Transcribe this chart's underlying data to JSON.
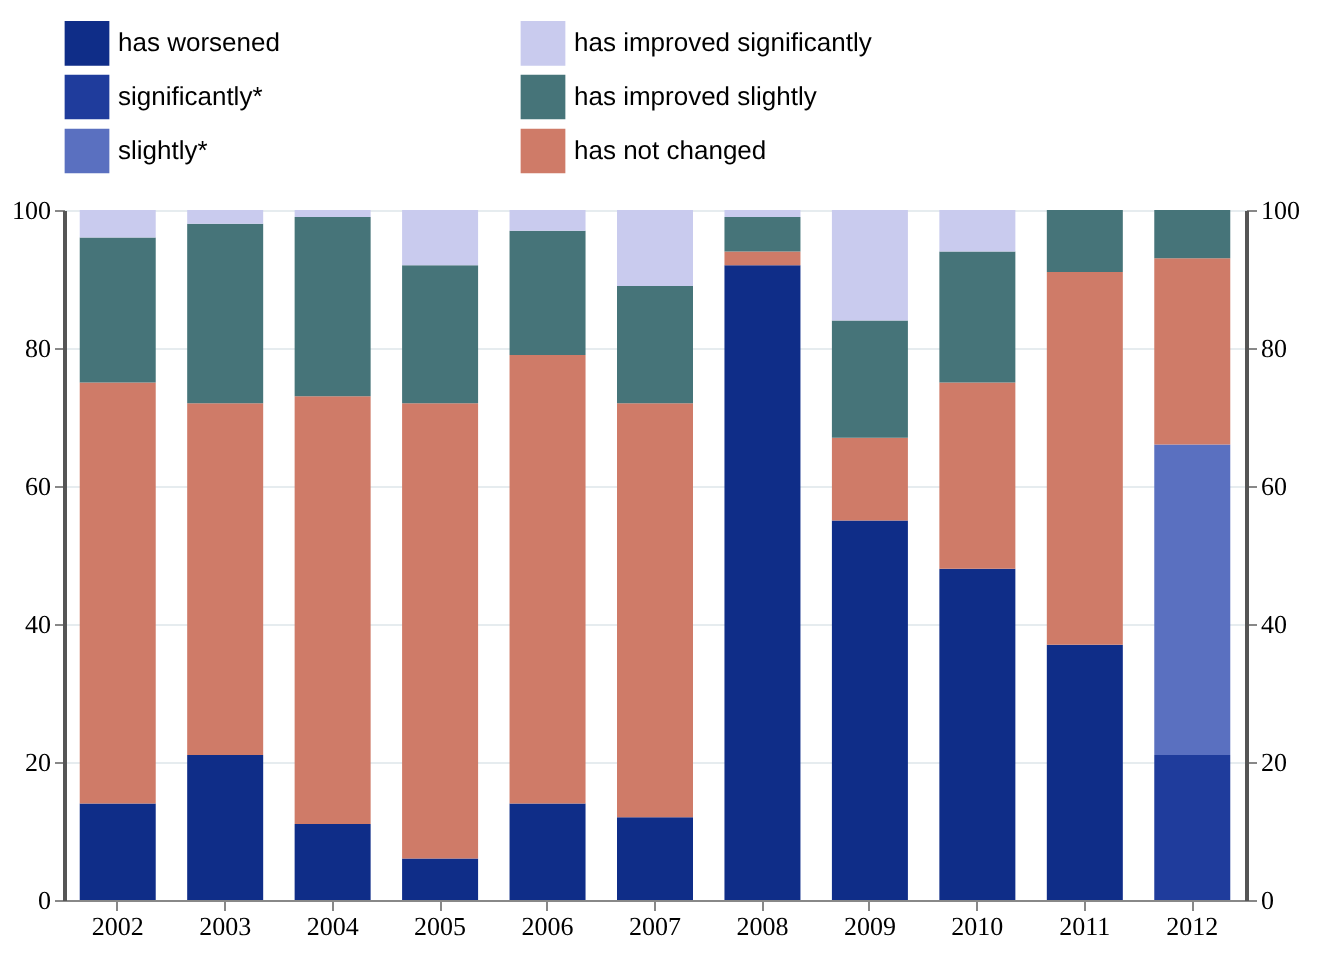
{
  "chart_data": {
    "type": "bar",
    "stacked": true,
    "categories": [
      "2002",
      "2003",
      "2004",
      "2005",
      "2006",
      "2007",
      "2008",
      "2009",
      "2010",
      "2011",
      "2012"
    ],
    "series": [
      {
        "name": "has worsened",
        "color": "#0f2d88",
        "values": [
          14,
          21,
          11,
          6,
          14,
          12,
          92,
          55,
          48,
          37,
          null
        ]
      },
      {
        "name": "significantly*",
        "color": "#1f3c9c",
        "values": [
          null,
          null,
          null,
          null,
          null,
          null,
          null,
          null,
          null,
          null,
          21
        ]
      },
      {
        "name": "slightly*",
        "color": "#5a70c0",
        "values": [
          null,
          null,
          null,
          null,
          null,
          null,
          null,
          null,
          null,
          null,
          45
        ]
      },
      {
        "name": "has not changed",
        "color": "#cf7b68",
        "values": [
          61,
          51,
          62,
          66,
          65,
          60,
          2,
          12,
          27,
          54,
          27
        ]
      },
      {
        "name": "has improved slightly",
        "color": "#467479",
        "values": [
          21,
          26,
          26,
          20,
          18,
          17,
          5,
          17,
          19,
          9,
          7
        ]
      },
      {
        "name": "has improved significantly",
        "color": "#c9cbee",
        "values": [
          4,
          2,
          1,
          8,
          3,
          11,
          1,
          16,
          6,
          null,
          null
        ]
      }
    ],
    "ylim": [
      0,
      100
    ],
    "yticks": [
      0,
      20,
      40,
      60,
      80,
      100
    ],
    "y2lim": [
      0,
      100
    ],
    "y2ticks": [
      0,
      20,
      40,
      60,
      80,
      100
    ],
    "grid": "y",
    "legend": "top"
  }
}
